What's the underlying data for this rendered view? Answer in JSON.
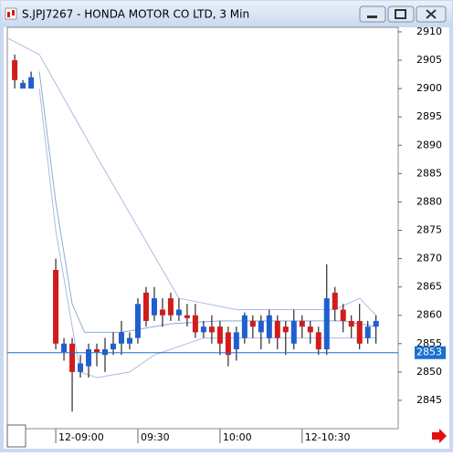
{
  "window": {
    "title": "S.JPJ7267 - HONDA MOTOR CO LTD, 3 Min"
  },
  "chart_data": {
    "type": "candlestick",
    "x": [
      -5,
      -4,
      -3,
      0,
      1,
      2,
      3,
      4,
      5,
      6,
      7,
      8,
      9,
      10,
      11,
      12,
      13,
      14,
      15,
      16,
      17,
      18,
      19,
      20,
      21,
      22,
      23,
      24,
      25,
      26,
      27,
      28,
      29,
      30,
      31,
      32,
      33,
      34,
      35,
      36,
      37,
      38,
      39
    ],
    "open": [
      2905,
      2900,
      2900,
      2868,
      2853.5,
      2855,
      2850,
      2851,
      2854,
      2853,
      2854,
      2855,
      2855,
      2856,
      2864,
      2860,
      2861,
      2863,
      2860,
      2860,
      2860,
      2857,
      2858,
      2858,
      2857,
      2854,
      2856,
      2859,
      2857,
      2856,
      2859,
      2858,
      2855,
      2859,
      2858,
      2857,
      2854,
      2864,
      2861,
      2859,
      2859,
      2856,
      2858
    ],
    "high": [
      2906,
      2901.5,
      2903,
      2870,
      2856,
      2856,
      2853,
      2855,
      2855,
      2856,
      2857,
      2859,
      2857,
      2863,
      2865,
      2865,
      2863,
      2864,
      2863,
      2862,
      2862,
      2859,
      2860,
      2859,
      2858,
      2858,
      2860.5,
      2860,
      2860,
      2861,
      2860,
      2859,
      2861,
      2860,
      2859,
      2858,
      2869,
      2865,
      2862,
      2860,
      2862,
      2859,
      2860
    ],
    "low": [
      2900,
      2900,
      2900,
      2854,
      2852,
      2843,
      2849,
      2849,
      2851,
      2850,
      2853,
      2853,
      2854,
      2855,
      2858,
      2859,
      2858,
      2859,
      2859,
      2858,
      2856,
      2856,
      2855,
      2853,
      2851,
      2852,
      2855,
      2856,
      2854,
      2855,
      2854,
      2853,
      2854,
      2856,
      2855,
      2853,
      2853,
      2859,
      2857,
      2856,
      2854,
      2855,
      2855
    ],
    "close": [
      2901.5,
      2901,
      2902,
      2855,
      2855,
      2850,
      2851.5,
      2854,
      2853.5,
      2854,
      2855,
      2857,
      2856,
      2862,
      2859,
      2863,
      2860,
      2860,
      2861,
      2859.5,
      2857,
      2858,
      2857,
      2855,
      2853,
      2857,
      2860,
      2858,
      2859,
      2860,
      2856,
      2857,
      2859,
      2858,
      2857,
      2854,
      2863,
      2861,
      2859,
      2858,
      2855,
      2858,
      2859
    ],
    "up_color": "#1f5fd0",
    "down_color": "#d21c1c",
    "lines": [
      {
        "color": "#a8bedf",
        "x": [
          -6,
          -2,
          5,
          15,
          22,
          30,
          34,
          37,
          39
        ],
        "values": [
          2909,
          2906,
          2888,
          2863,
          2861,
          2861,
          2861,
          2863,
          2860
        ]
      },
      {
        "color": "#8fa9d6",
        "x": [
          -2,
          0,
          2,
          3.5,
          8,
          14,
          20,
          30,
          35,
          39
        ],
        "values": [
          2903,
          2880,
          2862,
          2857,
          2857,
          2858.5,
          2859,
          2859,
          2859,
          2858
        ]
      },
      {
        "color": "#a8bedf",
        "x": [
          -2,
          0,
          2,
          3,
          5,
          9,
          12,
          18,
          25,
          33,
          39
        ],
        "values": [
          2900,
          2875,
          2858,
          2850,
          2849,
          2850,
          2853,
          2856,
          2856,
          2856,
          2856
        ]
      }
    ],
    "last_price": {
      "value": 2853.4,
      "label": "2853"
    },
    "xlim": [
      -5.9,
      41.7
    ],
    "xticks": [
      {
        "value": 0,
        "label": "12-09:00"
      },
      {
        "value": 10,
        "label": "09:30"
      },
      {
        "value": 20,
        "label": "10:00"
      },
      {
        "value": 30,
        "label": "12-10:30"
      }
    ],
    "ylim": [
      2840,
      2910.8
    ],
    "yticks": [
      2910,
      2905,
      2900,
      2895,
      2890,
      2885,
      2880,
      2875,
      2870,
      2865,
      2860,
      2855,
      2850,
      2845
    ]
  }
}
